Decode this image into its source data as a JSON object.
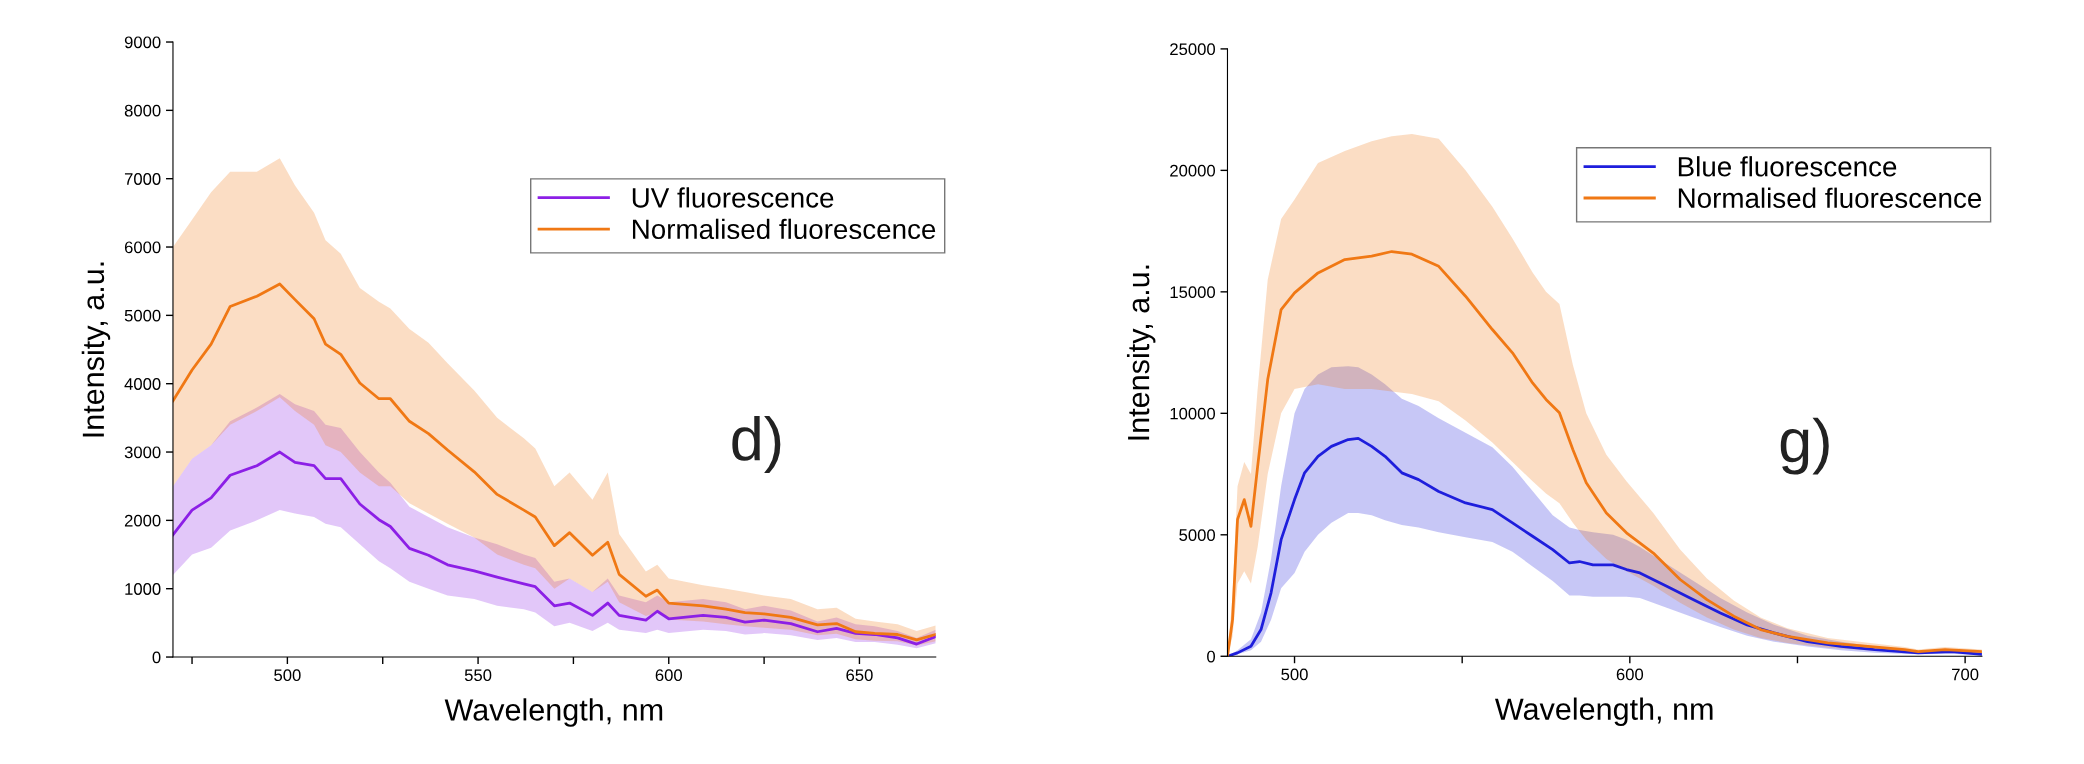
{
  "chart_data": [
    {
      "type": "line",
      "xlabel": "Wavelength, nm",
      "ylabel": "Intensity, a.u.",
      "annotations": [
        "d)"
      ],
      "xlim": [
        470,
        670
      ],
      "xticks": [
        {
          "value": 475,
          "label": null
        },
        500,
        {
          "value": 525,
          "label": null
        },
        550,
        {
          "value": 575,
          "label": null
        },
        600,
        {
          "value": 625,
          "label": null
        },
        650
      ],
      "ylim": [
        0,
        9000
      ],
      "yticks": [
        0,
        1000,
        2000,
        3000,
        4000,
        5000,
        6000,
        7000,
        8000,
        9000
      ],
      "grid": false,
      "legend": "upper right",
      "line_style": "solid",
      "marker": "none",
      "x": [
        470,
        475,
        480,
        485,
        492,
        498,
        502,
        507,
        510,
        514,
        519,
        524,
        527,
        532,
        537,
        542,
        549,
        555,
        562,
        565,
        570,
        574,
        580,
        584,
        587,
        594,
        597,
        600,
        609,
        615,
        620,
        625,
        632,
        639,
        644,
        649,
        654,
        660,
        665,
        670
      ],
      "series": [
        {
          "name": "UV fluorescence",
          "color": "#8c1fe6",
          "values": [
            1790,
            2150,
            2330,
            2660,
            2800,
            3000,
            2850,
            2800,
            2610,
            2610,
            2240,
            2010,
            1910,
            1590,
            1490,
            1350,
            1260,
            1170,
            1070,
            1030,
            750,
            790,
            610,
            790,
            610,
            540,
            670,
            560,
            610,
            580,
            510,
            540,
            490,
            370,
            420,
            345,
            330,
            280,
            190,
            300
          ],
          "lower": [
            1200,
            1500,
            1600,
            1850,
            2000,
            2150,
            2100,
            2050,
            1950,
            1900,
            1650,
            1400,
            1300,
            1100,
            1000,
            900,
            850,
            750,
            700,
            650,
            450,
            500,
            380,
            500,
            400,
            350,
            400,
            350,
            400,
            380,
            330,
            350,
            320,
            250,
            280,
            220,
            220,
            180,
            130,
            200
          ],
          "upper": [
            2500,
            2900,
            3100,
            3450,
            3650,
            3850,
            3700,
            3600,
            3400,
            3350,
            3000,
            2700,
            2550,
            2200,
            2050,
            1900,
            1750,
            1650,
            1500,
            1450,
            1100,
            1150,
            950,
            1150,
            900,
            800,
            900,
            800,
            850,
            800,
            700,
            750,
            680,
            520,
            580,
            480,
            450,
            380,
            280,
            400
          ]
        },
        {
          "name": "Normalised fluorescence",
          "color": "#f07814",
          "values": [
            3750,
            4200,
            4580,
            5130,
            5280,
            5460,
            5230,
            4950,
            4580,
            4430,
            4010,
            3780,
            3780,
            3450,
            3270,
            3030,
            2710,
            2380,
            2150,
            2050,
            1630,
            1820,
            1490,
            1680,
            1210,
            890,
            980,
            790,
            750,
            700,
            650,
            630,
            580,
            470,
            490,
            370,
            345,
            330,
            250,
            330
          ],
          "lower": [
            2500,
            2900,
            3100,
            3400,
            3600,
            3800,
            3600,
            3400,
            3100,
            3000,
            2700,
            2500,
            2500,
            2250,
            2100,
            1950,
            1750,
            1500,
            1350,
            1300,
            1000,
            1150,
            950,
            1100,
            800,
            600,
            650,
            550,
            520,
            480,
            450,
            430,
            400,
            320,
            340,
            260,
            240,
            230,
            170,
            230
          ],
          "upper": [
            6000,
            6400,
            6800,
            7100,
            7100,
            7300,
            6900,
            6500,
            6100,
            5900,
            5400,
            5200,
            5100,
            4800,
            4600,
            4300,
            3900,
            3500,
            3200,
            3050,
            2500,
            2700,
            2300,
            2700,
            1800,
            1250,
            1350,
            1150,
            1050,
            1000,
            950,
            900,
            850,
            700,
            720,
            560,
            520,
            480,
            380,
            460
          ]
        }
      ]
    },
    {
      "type": "line",
      "xlabel": "Wavelength, nm",
      "ylabel": "Intensity, a.u.",
      "annotations": [
        "g)"
      ],
      "xlim": [
        480,
        705
      ],
      "xticks": [
        500,
        {
          "value": 550,
          "label": null
        },
        600,
        {
          "value": 650,
          "label": null
        },
        700
      ],
      "ylim": [
        0,
        25000
      ],
      "yticks": [
        0,
        5000,
        10000,
        15000,
        20000,
        25000
      ],
      "grid": false,
      "legend": "upper right",
      "line_style": "solid",
      "marker": "none",
      "series": [
        {
          "name": "Blue fluorescence",
          "color": "#1e1edc",
          "x": [
            480,
            483,
            487,
            490,
            493,
            496,
            500,
            503,
            507,
            511,
            516,
            519,
            523,
            527,
            532,
            537,
            543,
            551,
            559,
            565,
            571,
            577,
            582,
            585,
            589,
            595,
            599,
            603,
            611,
            619,
            627,
            635,
            643,
            653,
            663,
            673,
            681,
            686,
            696,
            705
          ],
          "values": [
            0,
            140,
            410,
            1100,
            2610,
            4800,
            6450,
            7550,
            8230,
            8640,
            8920,
            8970,
            8640,
            8230,
            7550,
            7270,
            6780,
            6310,
            6040,
            5490,
            4940,
            4390,
            3840,
            3900,
            3760,
            3760,
            3570,
            3430,
            2880,
            2330,
            1780,
            1290,
            960,
            600,
            410,
            270,
            190,
            140,
            190,
            80
          ],
          "lower": [
            0,
            80,
            250,
            600,
            1500,
            2800,
            3430,
            4300,
            5000,
            5500,
            5900,
            5900,
            5800,
            5600,
            5400,
            5300,
            5100,
            4900,
            4700,
            4300,
            3700,
            3100,
            2500,
            2500,
            2450,
            2450,
            2450,
            2400,
            2000,
            1600,
            1200,
            850,
            600,
            400,
            250,
            150,
            100,
            80,
            100,
            40
          ],
          "upper": [
            0,
            250,
            700,
            1800,
            4000,
            7000,
            10000,
            11000,
            11600,
            11900,
            11940,
            11900,
            11600,
            11200,
            10600,
            10300,
            9800,
            9200,
            8600,
            7800,
            6800,
            5800,
            5300,
            5200,
            5100,
            5000,
            4800,
            4500,
            3800,
            3100,
            2400,
            1800,
            1300,
            850,
            600,
            400,
            300,
            220,
            280,
            150
          ]
        },
        {
          "name": "Normalised fluorescence",
          "color": "#f07814",
          "x": [
            480,
            481.5,
            483,
            485,
            487,
            489,
            492,
            496,
            500,
            507,
            515,
            523,
            529,
            535,
            543,
            551,
            559,
            565,
            571,
            575,
            579,
            583,
            587,
            593,
            599,
            607,
            615,
            623,
            631,
            639,
            647,
            659,
            671,
            682,
            686,
            694,
            705
          ],
          "values": [
            0,
            1500,
            5630,
            6450,
            5350,
            7820,
            11390,
            14270,
            14960,
            15780,
            16330,
            16470,
            16660,
            16550,
            16050,
            14820,
            13450,
            12490,
            11250,
            10570,
            10020,
            8510,
            7140,
            5900,
            5080,
            4250,
            3160,
            2330,
            1650,
            1100,
            820,
            550,
            410,
            270,
            190,
            270,
            190
          ],
          "lower": [
            0,
            800,
            3000,
            3500,
            3000,
            4500,
            7500,
            10000,
            11000,
            11200,
            11000,
            11000,
            10900,
            10800,
            10500,
            9700,
            8800,
            8000,
            7200,
            6700,
            6300,
            5500,
            4800,
            4000,
            3500,
            2900,
            2200,
            1600,
            1100,
            750,
            550,
            350,
            250,
            170,
            120,
            170,
            110
          ],
          "upper": [
            0,
            2500,
            7000,
            8000,
            7500,
            11000,
            15500,
            18000,
            18800,
            20300,
            20800,
            21200,
            21400,
            21500,
            21300,
            20000,
            18500,
            17200,
            15800,
            15000,
            14500,
            12000,
            10000,
            8300,
            7200,
            5900,
            4400,
            3200,
            2300,
            1600,
            1150,
            750,
            560,
            380,
            280,
            380,
            280
          ]
        }
      ]
    }
  ]
}
